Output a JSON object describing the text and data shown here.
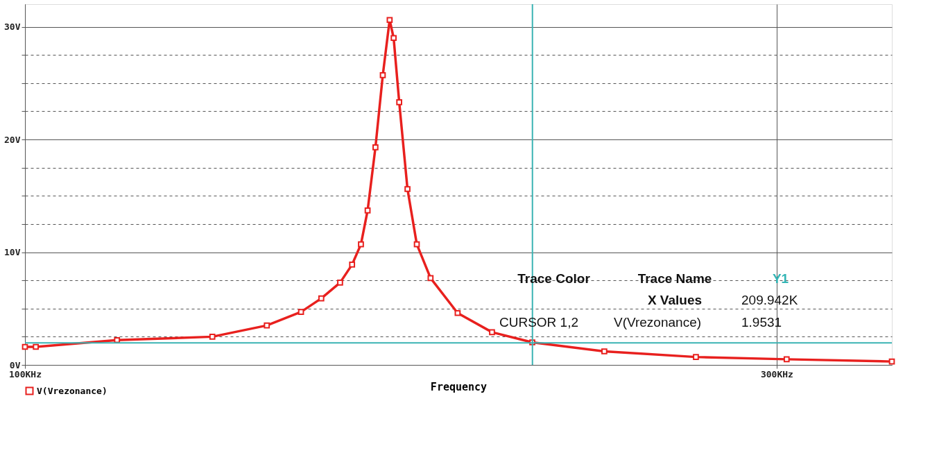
{
  "chart_data": {
    "type": "line",
    "xlabel": "Frequency",
    "x": [
      100,
      101.6,
      114.4,
      131.5,
      142.4,
      149.7,
      154.2,
      158.5,
      161.3,
      163.4,
      165.0,
      166.9,
      168.7,
      170.4,
      171.4,
      172.8,
      174.9,
      177.3,
      180.9,
      188.2,
      197.9,
      209.9,
      233.2,
      266.6,
      304.4,
      355
    ],
    "series": [
      {
        "name": "V(Vrezonance)",
        "color": "#e8201e",
        "values": [
          1.6,
          1.6,
          2.2,
          2.5,
          3.5,
          4.7,
          5.9,
          7.3,
          8.9,
          10.7,
          13.7,
          19.3,
          25.7,
          30.6,
          29.0,
          23.3,
          15.6,
          10.7,
          7.7,
          4.6,
          2.9,
          2.0,
          1.2,
          0.7,
          0.5,
          0.3
        ]
      }
    ],
    "log": "x",
    "xlim": [
      100,
      355
    ],
    "xticks": [
      {
        "value": 100,
        "label": "100KHz"
      },
      {
        "value": 300,
        "label": "300KHz"
      }
    ],
    "ylim": [
      0,
      32
    ],
    "yticks": [
      {
        "value": 0,
        "label": "0V"
      },
      {
        "value": 2.5,
        "label": null
      },
      {
        "value": 5,
        "label": null
      },
      {
        "value": 7.5,
        "label": null
      },
      {
        "value": 10,
        "label": "10V"
      },
      {
        "value": 12.5,
        "label": null
      },
      {
        "value": 15,
        "label": null
      },
      {
        "value": 17.5,
        "label": null
      },
      {
        "value": 20,
        "label": "20V"
      },
      {
        "value": 22.5,
        "label": null
      },
      {
        "value": 25,
        "label": null
      },
      {
        "value": 27.5,
        "label": null
      },
      {
        "value": 30,
        "label": "30V"
      }
    ],
    "grid": true,
    "legend": "bottom left",
    "marker": "square",
    "line_style": "solid",
    "ref_lines": [
      {
        "axis": "x",
        "value": 209.942,
        "color": "#3ab3b3"
      },
      {
        "axis": "y",
        "value": 1.9531,
        "color": "#3ab3b3"
      }
    ],
    "annotations": [
      "Trace Color",
      "Trace Name",
      "Y1",
      "X Values",
      "209.942K",
      "CURSOR 1,2",
      "V(Vrezonance)",
      "1.9531"
    ]
  }
}
